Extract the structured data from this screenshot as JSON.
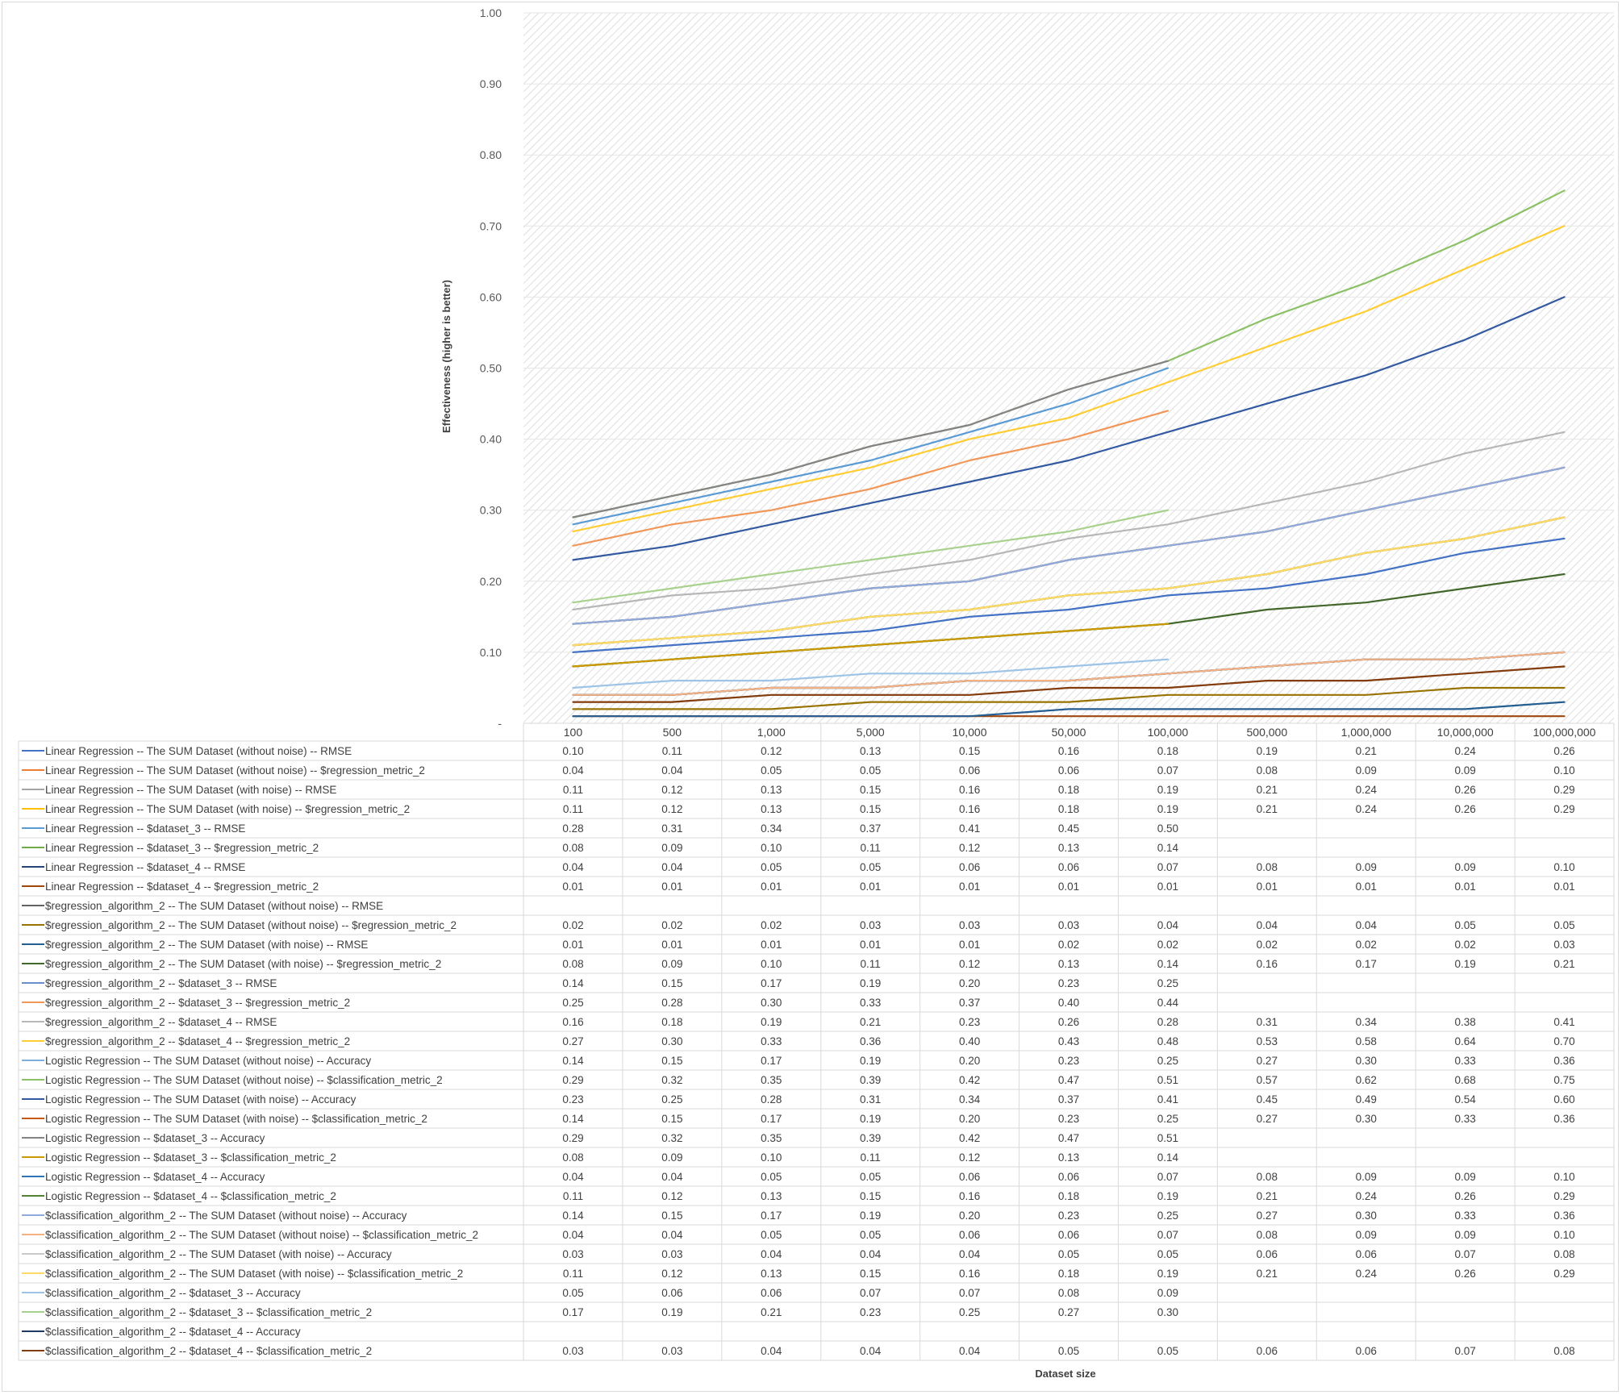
{
  "chart_data": {
    "type": "line",
    "title": "",
    "xlabel": "Dataset size",
    "ylabel": "Effectiveness (higher is better)",
    "ylim": [
      0,
      1.0
    ],
    "yticks": [
      "1.00",
      "0.90",
      "0.80",
      "0.70",
      "0.60",
      "0.50",
      "0.40",
      "0.30",
      "0.20",
      "0.10",
      "-"
    ],
    "grid": true,
    "legend": "data-table",
    "categories": [
      "100",
      "500",
      "1,000",
      "5,000",
      "10,000",
      "50,000",
      "100,000",
      "500,000",
      "1,000,000",
      "10,000,000",
      "100,000,000"
    ],
    "series": [
      {
        "name": "Linear Regression -- The SUM Dataset (without noise) -- RMSE",
        "color": "#4472C4",
        "values": [
          "0.10",
          "0.11",
          "0.12",
          "0.13",
          "0.15",
          "0.16",
          "0.18",
          "0.19",
          "0.21",
          "0.24",
          "0.26"
        ]
      },
      {
        "name": "Linear Regression -- The SUM Dataset (without noise) -- $regression_metric_2",
        "color": "#ED7D31",
        "values": [
          "0.04",
          "0.04",
          "0.05",
          "0.05",
          "0.06",
          "0.06",
          "0.07",
          "0.08",
          "0.09",
          "0.09",
          "0.10"
        ]
      },
      {
        "name": "Linear Regression -- The SUM Dataset (with noise) -- RMSE",
        "color": "#A5A5A5",
        "values": [
          "0.11",
          "0.12",
          "0.13",
          "0.15",
          "0.16",
          "0.18",
          "0.19",
          "0.21",
          "0.24",
          "0.26",
          "0.29"
        ]
      },
      {
        "name": "Linear Regression -- The SUM Dataset (with noise) -- $regression_metric_2",
        "color": "#FFC000",
        "values": [
          "0.11",
          "0.12",
          "0.13",
          "0.15",
          "0.16",
          "0.18",
          "0.19",
          "0.21",
          "0.24",
          "0.26",
          "0.29"
        ]
      },
      {
        "name": "Linear Regression -- $dataset_3 -- RMSE",
        "color": "#5B9BD5",
        "values": [
          "0.28",
          "0.31",
          "0.34",
          "0.37",
          "0.41",
          "0.45",
          "0.50",
          null,
          null,
          null,
          null
        ]
      },
      {
        "name": "Linear Regression -- $dataset_3 -- $regression_metric_2",
        "color": "#70AD47",
        "values": [
          "0.08",
          "0.09",
          "0.10",
          "0.11",
          "0.12",
          "0.13",
          "0.14",
          null,
          null,
          null,
          null
        ]
      },
      {
        "name": "Linear Regression -- $dataset_4 -- RMSE",
        "color": "#264478",
        "values": [
          "0.04",
          "0.04",
          "0.05",
          "0.05",
          "0.06",
          "0.06",
          "0.07",
          "0.08",
          "0.09",
          "0.09",
          "0.10"
        ]
      },
      {
        "name": "Linear Regression -- $dataset_4 -- $regression_metric_2",
        "color": "#9E480E",
        "values": [
          "0.01",
          "0.01",
          "0.01",
          "0.01",
          "0.01",
          "0.01",
          "0.01",
          "0.01",
          "0.01",
          "0.01",
          "0.01"
        ]
      },
      {
        "name": "$regression_algorithm_2 -- The SUM Dataset (without noise) -- RMSE",
        "color": "#636363",
        "values": [
          null,
          null,
          null,
          null,
          null,
          null,
          null,
          null,
          null,
          null,
          null
        ]
      },
      {
        "name": "$regression_algorithm_2 -- The SUM Dataset (without noise) -- $regression_metric_2",
        "color": "#997300",
        "values": [
          "0.02",
          "0.02",
          "0.02",
          "0.03",
          "0.03",
          "0.03",
          "0.04",
          "0.04",
          "0.04",
          "0.05",
          "0.05"
        ]
      },
      {
        "name": "$regression_algorithm_2 -- The SUM Dataset (with noise) -- RMSE",
        "color": "#255E91",
        "values": [
          "0.01",
          "0.01",
          "0.01",
          "0.01",
          "0.01",
          "0.02",
          "0.02",
          "0.02",
          "0.02",
          "0.02",
          "0.03"
        ]
      },
      {
        "name": "$regression_algorithm_2 -- The SUM Dataset (with noise) -- $regression_metric_2",
        "color": "#43682B",
        "values": [
          "0.08",
          "0.09",
          "0.10",
          "0.11",
          "0.12",
          "0.13",
          "0.14",
          "0.16",
          "0.17",
          "0.19",
          "0.21"
        ]
      },
      {
        "name": "$regression_algorithm_2 -- $dataset_3 -- RMSE",
        "color": "#698ED0",
        "values": [
          "0.14",
          "0.15",
          "0.17",
          "0.19",
          "0.20",
          "0.23",
          "0.25",
          null,
          null,
          null,
          null
        ]
      },
      {
        "name": "$regression_algorithm_2 -- $dataset_3 -- $regression_metric_2",
        "color": "#F1975A",
        "values": [
          "0.25",
          "0.28",
          "0.30",
          "0.33",
          "0.37",
          "0.40",
          "0.44",
          null,
          null,
          null,
          null
        ]
      },
      {
        "name": "$regression_algorithm_2 -- $dataset_4 -- RMSE",
        "color": "#B7B7B7",
        "values": [
          "0.16",
          "0.18",
          "0.19",
          "0.21",
          "0.23",
          "0.26",
          "0.28",
          "0.31",
          "0.34",
          "0.38",
          "0.41"
        ]
      },
      {
        "name": "$regression_algorithm_2 -- $dataset_4 -- $regression_metric_2",
        "color": "#FFCD33",
        "values": [
          "0.27",
          "0.30",
          "0.33",
          "0.36",
          "0.40",
          "0.43",
          "0.48",
          "0.53",
          "0.58",
          "0.64",
          "0.70"
        ]
      },
      {
        "name": "Logistic Regression -- The SUM Dataset (without noise) -- Accuracy",
        "color": "#7CAFDD",
        "values": [
          "0.14",
          "0.15",
          "0.17",
          "0.19",
          "0.20",
          "0.23",
          "0.25",
          "0.27",
          "0.30",
          "0.33",
          "0.36"
        ]
      },
      {
        "name": "Logistic Regression -- The SUM Dataset (without noise) -- $classification_metric_2",
        "color": "#8CC168",
        "values": [
          "0.29",
          "0.32",
          "0.35",
          "0.39",
          "0.42",
          "0.47",
          "0.51",
          "0.57",
          "0.62",
          "0.68",
          "0.75"
        ]
      },
      {
        "name": "Logistic Regression -- The SUM Dataset (with noise) -- Accuracy",
        "color": "#335AA1",
        "values": [
          "0.23",
          "0.25",
          "0.28",
          "0.31",
          "0.34",
          "0.37",
          "0.41",
          "0.45",
          "0.49",
          "0.54",
          "0.60"
        ]
      },
      {
        "name": "Logistic Regression -- The SUM Dataset (with noise) -- $classification_metric_2",
        "color": "#C65911",
        "values": [
          "0.14",
          "0.15",
          "0.17",
          "0.19",
          "0.20",
          "0.23",
          "0.25",
          "0.27",
          "0.30",
          "0.33",
          "0.36"
        ]
      },
      {
        "name": "Logistic Regression -- $dataset_3 -- Accuracy",
        "color": "#848484",
        "values": [
          "0.29",
          "0.32",
          "0.35",
          "0.39",
          "0.42",
          "0.47",
          "0.51",
          null,
          null,
          null,
          null
        ]
      },
      {
        "name": "Logistic Regression -- $dataset_3 -- $classification_metric_2",
        "color": "#CC9A00",
        "values": [
          "0.08",
          "0.09",
          "0.10",
          "0.11",
          "0.12",
          "0.13",
          "0.14",
          null,
          null,
          null,
          null
        ]
      },
      {
        "name": "Logistic Regression -- $dataset_4 -- Accuracy",
        "color": "#2E75B6",
        "values": [
          "0.04",
          "0.04",
          "0.05",
          "0.05",
          "0.06",
          "0.06",
          "0.07",
          "0.08",
          "0.09",
          "0.09",
          "0.10"
        ]
      },
      {
        "name": "Logistic Regression -- $dataset_4 -- $classification_metric_2",
        "color": "#548235",
        "values": [
          "0.11",
          "0.12",
          "0.13",
          "0.15",
          "0.16",
          "0.18",
          "0.19",
          "0.21",
          "0.24",
          "0.26",
          "0.29"
        ]
      },
      {
        "name": "$classification_algorithm_2 -- The SUM Dataset (without noise) -- Accuracy",
        "color": "#8FAADC",
        "values": [
          "0.14",
          "0.15",
          "0.17",
          "0.19",
          "0.20",
          "0.23",
          "0.25",
          "0.27",
          "0.30",
          "0.33",
          "0.36"
        ]
      },
      {
        "name": "$classification_algorithm_2 -- The SUM Dataset (without noise) -- $classification_metric_2",
        "color": "#F4B183",
        "values": [
          "0.04",
          "0.04",
          "0.05",
          "0.05",
          "0.06",
          "0.06",
          "0.07",
          "0.08",
          "0.09",
          "0.09",
          "0.10"
        ]
      },
      {
        "name": "$classification_algorithm_2 -- The SUM Dataset (with noise) -- Accuracy",
        "color": "#C9C9C9",
        "values": [
          "0.03",
          "0.03",
          "0.04",
          "0.04",
          "0.04",
          "0.05",
          "0.05",
          "0.06",
          "0.06",
          "0.07",
          "0.08"
        ]
      },
      {
        "name": "$classification_algorithm_2 -- The SUM Dataset (with noise) -- $classification_metric_2",
        "color": "#FFD966",
        "values": [
          "0.11",
          "0.12",
          "0.13",
          "0.15",
          "0.16",
          "0.18",
          "0.19",
          "0.21",
          "0.24",
          "0.26",
          "0.29"
        ]
      },
      {
        "name": "$classification_algorithm_2 -- $dataset_3 -- Accuracy",
        "color": "#9DC3E6",
        "values": [
          "0.05",
          "0.06",
          "0.06",
          "0.07",
          "0.07",
          "0.08",
          "0.09",
          null,
          null,
          null,
          null
        ]
      },
      {
        "name": "$classification_algorithm_2 -- $dataset_3 -- $classification_metric_2",
        "color": "#A9D18E",
        "values": [
          "0.17",
          "0.19",
          "0.21",
          "0.23",
          "0.25",
          "0.27",
          "0.30",
          null,
          null,
          null,
          null
        ]
      },
      {
        "name": "$classification_algorithm_2 -- $dataset_4 -- Accuracy",
        "color": "#1F3864",
        "values": [
          null,
          null,
          null,
          null,
          null,
          null,
          null,
          null,
          null,
          null,
          null
        ]
      },
      {
        "name": "$classification_algorithm_2 -- $dataset_4 -- $classification_metric_2",
        "color": "#843C0C",
        "values": [
          "0.03",
          "0.03",
          "0.04",
          "0.04",
          "0.04",
          "0.05",
          "0.05",
          "0.06",
          "0.06",
          "0.07",
          "0.08"
        ]
      }
    ]
  }
}
